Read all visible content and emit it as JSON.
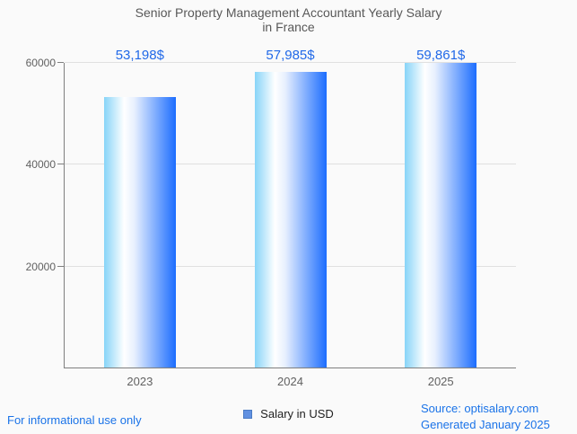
{
  "title": {
    "line1": "Senior Property Management Accountant Yearly Salary",
    "line2": "in France"
  },
  "chart_data": {
    "type": "bar",
    "title": "Senior Property Management Accountant Yearly Salary in France",
    "categories": [
      "2023",
      "2024",
      "2025"
    ],
    "series": [
      {
        "name": "Salary in USD",
        "values": [
          53198,
          57985,
          59861
        ]
      }
    ],
    "value_labels": [
      "53,198$",
      "57,985$",
      "59,861$"
    ],
    "xlabel": "",
    "ylabel": "",
    "ylim": [
      0,
      60000
    ],
    "yticks": [
      20000,
      40000,
      60000
    ],
    "ytick_labels": [
      "20000",
      "40000",
      "60000"
    ],
    "grid": true,
    "legend_position": "bottom"
  },
  "legend": {
    "label": "Salary in USD"
  },
  "footer": {
    "disclaimer": "For informational use only",
    "source": "Source: optisalary.com",
    "generated": "Generated January 2025"
  },
  "colors": {
    "annotation_blue": "#2169E8",
    "footer_blue": "#1A73E8",
    "bar_gradient": [
      "#87D4F8",
      "#FFFFFF",
      "#E8F0FE",
      "#1C6DFE"
    ],
    "legend_marker_fill": "#6191E1",
    "legend_marker_border": "#4A7BC4",
    "axis_gray": "#7F7F7F",
    "gridline_gray": "#E0E0E0",
    "text_gray": "#616161",
    "title_gray": "#585858",
    "background": "#FAFAFA"
  }
}
